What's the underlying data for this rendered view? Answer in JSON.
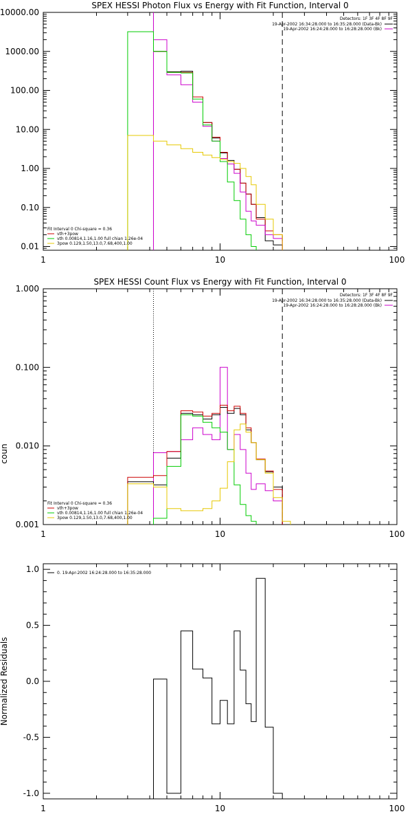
{
  "chart_data": [
    {
      "type": "line",
      "title": "SPEX HESSI Photon Flux vs Energy with Fit Function, Interval 0",
      "xscale": "log",
      "yscale": "log",
      "xlim": [
        1,
        100
      ],
      "ylim": [
        0.008,
        10000
      ],
      "x_tick_labels": [
        "1",
        "10",
        "100"
      ],
      "y_ticks": [
        0.01,
        0.1,
        1,
        10,
        100,
        1000,
        10000
      ],
      "y_tick_labels": [
        "0.01",
        "0.10",
        "1.00",
        "10.00",
        "100.00",
        "1000.00",
        "10000.00"
      ],
      "detectors_text": "Detectors: 1F 3F 4F 8F 9F",
      "legend_right": [
        {
          "text": "19-Apr-2002 16:34:28.000 to 16:35:28.000 (Data-Bk)",
          "color": "#000000"
        },
        {
          "text": "19-Apr-2002 16:24:28.000 to 16:28:28.000 (Bk)",
          "color": "#cc00cc"
        }
      ],
      "legend_left_header": "Fit Interval 0   Chi-square = 0.36",
      "legend_left": [
        {
          "text": "vth+3pow",
          "color": "#cc0000"
        },
        {
          "text": "vth 0.00814,1.16,1.00  full chian 1.26e-04",
          "color": "#00cc00"
        },
        {
          "text": "3pow 0.129,1.50,13.0,7.68,400,1.00",
          "color": "#e6c800"
        }
      ],
      "vlines": [
        {
          "x": 4.2,
          "style": "dotted",
          "color": "#000000"
        },
        {
          "x": 4.2,
          "style": "solid",
          "color": "#cc00cc"
        },
        {
          "x": 22.5,
          "style": "dashed",
          "color": "#000000"
        }
      ],
      "series": [
        {
          "color": "#000000",
          "edges": [
            4.2,
            5,
            6,
            7,
            8,
            9,
            10,
            11,
            12,
            13,
            14,
            15,
            16,
            18,
            20,
            22.5
          ],
          "values": [
            1000,
            300,
            310,
            68,
            15,
            6,
            2.5,
            1.6,
            0.95,
            0.42,
            0.22,
            0.12,
            0.055,
            0.014,
            0.011
          ]
        },
        {
          "color": "#cc0000",
          "edges": [
            4.2,
            5,
            6,
            7,
            8,
            9,
            10,
            11,
            12,
            13,
            14,
            15,
            16,
            18,
            20,
            22.5
          ],
          "values": [
            1000,
            290,
            290,
            68,
            15,
            6.3,
            2.6,
            1.5,
            0.95,
            0.42,
            0.22,
            0.12,
            0.05,
            0.025,
            0.02
          ]
        },
        {
          "color": "#cc00cc",
          "edges": [
            4.2,
            5,
            6,
            7,
            8,
            9,
            10,
            11,
            12,
            13,
            14,
            15,
            16,
            18,
            20,
            22.5
          ],
          "values": [
            2000,
            250,
            140,
            50,
            12,
            5,
            1.8,
            1.3,
            0.75,
            0.25,
            0.08,
            0.045,
            0.035,
            0.02,
            0.016
          ]
        },
        {
          "color": "#00cc00",
          "edges": [
            3,
            4.2,
            5,
            6,
            7,
            8,
            9,
            10,
            11,
            12,
            13,
            14,
            15,
            16
          ],
          "values": [
            3200,
            1000,
            290,
            280,
            60,
            13,
            5,
            1.5,
            0.45,
            0.15,
            0.05,
            0.02,
            0.01
          ]
        },
        {
          "color": "#e6c800",
          "edges": [
            3,
            4.2,
            5,
            6,
            7,
            8,
            9,
            10,
            11,
            12,
            13,
            14,
            15,
            16,
            18,
            20,
            22.5
          ],
          "values": [
            7,
            5,
            4,
            3.2,
            2.6,
            2.2,
            1.9,
            1.7,
            1.5,
            1.35,
            1,
            0.62,
            0.38,
            0.12,
            0.05,
            0.02
          ]
        }
      ]
    },
    {
      "type": "line",
      "title": "SPEX HESSI Count Flux vs Energy with Fit Function, Interval 0",
      "xscale": "log",
      "yscale": "log",
      "xlim": [
        1,
        100
      ],
      "ylim": [
        0.001,
        1
      ],
      "x_tick_labels": [
        "1",
        "10",
        "100"
      ],
      "y_ticks": [
        0.001,
        0.01,
        0.1,
        1
      ],
      "y_tick_labels": [
        "0.001",
        "0.010",
        "0.100",
        "1.000"
      ],
      "detectors_text": "Detectors: 1F 3F 4F 8F 9F",
      "legend_right": [
        {
          "text": "19-Apr-2002 16:34:28.000 to 16:35:28.000 (Data-Bk)",
          "color": "#000000"
        },
        {
          "text": "19-Apr-2002 16:24:28.000 to 16:28:28.000 (Bk)",
          "color": "#cc00cc"
        }
      ],
      "legend_left_header": "Fit Interval 0   Chi-square = 0.36",
      "legend_left": [
        {
          "text": "vth+3pow",
          "color": "#cc0000"
        },
        {
          "text": "vth 0.00814,1.16,1.00  full chian 1.26e-04",
          "color": "#00cc00"
        },
        {
          "text": "3pow 0.129,1.50,13.0,7.68,400,1.00",
          "color": "#e6c800"
        }
      ],
      "vlines": [
        {
          "x": 4.2,
          "style": "dotted",
          "color": "#000000"
        },
        {
          "x": 22.5,
          "style": "dashed",
          "color": "#000000"
        }
      ],
      "series": [
        {
          "color": "#cc00cc",
          "edges": [
            4.2,
            5,
            6,
            7,
            8,
            9,
            10,
            11,
            12,
            13,
            14,
            15,
            16,
            18,
            20,
            22.5
          ],
          "values": [
            0.0082,
            0.0085,
            0.012,
            0.017,
            0.014,
            0.012,
            0.1,
            0.009,
            0.014,
            0.009,
            0.0045,
            0.0028,
            0.0033,
            0.0027,
            0.002
          ]
        },
        {
          "color": "#000000",
          "edges": [
            3,
            4.2,
            5,
            6,
            7,
            8,
            9,
            10,
            11,
            12,
            13,
            14,
            15,
            16,
            18,
            20,
            22.5
          ],
          "values": [
            0.0035,
            0.0032,
            0.007,
            0.026,
            0.025,
            0.022,
            0.025,
            0.031,
            0.026,
            0.03,
            0.025,
            0.016,
            0.011,
            0.0067,
            0.0047,
            0.003
          ]
        },
        {
          "color": "#cc0000",
          "edges": [
            3,
            4.2,
            5,
            6,
            7,
            8,
            9,
            10,
            11,
            12,
            13,
            14,
            15,
            16,
            18,
            20,
            22.5
          ],
          "values": [
            0.004,
            0.0042,
            0.0085,
            0.028,
            0.027,
            0.024,
            0.026,
            0.033,
            0.028,
            0.032,
            0.026,
            0.017,
            0.011,
            0.0068,
            0.0048,
            0.0028
          ]
        },
        {
          "color": "#00cc00",
          "edges": [
            4.2,
            5,
            6,
            7,
            8,
            9,
            10,
            11,
            12,
            13,
            14,
            15,
            16
          ],
          "values": [
            0.0012,
            0.0055,
            0.025,
            0.024,
            0.02,
            0.017,
            0.015,
            0.009,
            0.0032,
            0.0018,
            0.0013,
            0.0011
          ]
        },
        {
          "color": "#e6c800",
          "edges": [
            3,
            4.2,
            5,
            6,
            7,
            8,
            9,
            10,
            11,
            12,
            13,
            14,
            15,
            16,
            18,
            20,
            22.5,
            25
          ],
          "values": [
            0.0033,
            0.003,
            0.0016,
            0.0015,
            0.0015,
            0.0016,
            0.002,
            0.0029,
            0.0063,
            0.016,
            0.019,
            0.015,
            0.011,
            0.0067,
            0.0045,
            0.0022,
            0.0011
          ]
        }
      ]
    },
    {
      "type": "line",
      "title": "",
      "ylabel": "Normalized Residuals",
      "xscale": "log",
      "yscale": "linear",
      "xlim": [
        1,
        100
      ],
      "ylim": [
        -1.05,
        1.05
      ],
      "x_tick_labels": [
        "1",
        "10",
        "100"
      ],
      "y_ticks": [
        -1,
        -0.5,
        0,
        0.5,
        1
      ],
      "y_tick_labels": [
        "-1.0",
        "-0.5",
        "0.0",
        "0.5",
        "1.0"
      ],
      "legend_left_header": "",
      "legend_left": [
        {
          "text": "0. 19-Apr-2002 16:24:28.000 to 16:35:28.000",
          "color": "#000000"
        }
      ],
      "series": [
        {
          "color": "#000000",
          "edges": [
            4.2,
            5,
            6,
            7,
            8,
            9,
            10,
            11,
            12,
            13,
            14,
            15,
            16,
            18,
            20,
            22.5
          ],
          "values": [
            0.02,
            -1.0,
            0.45,
            0.11,
            0.03,
            -0.38,
            -0.17,
            -0.38,
            0.45,
            0.1,
            -0.2,
            -0.36,
            0.92,
            -0.41,
            -1.0
          ]
        }
      ]
    }
  ],
  "left_clipped_labels": [
    "coun",
    "Normalized Residuals"
  ]
}
